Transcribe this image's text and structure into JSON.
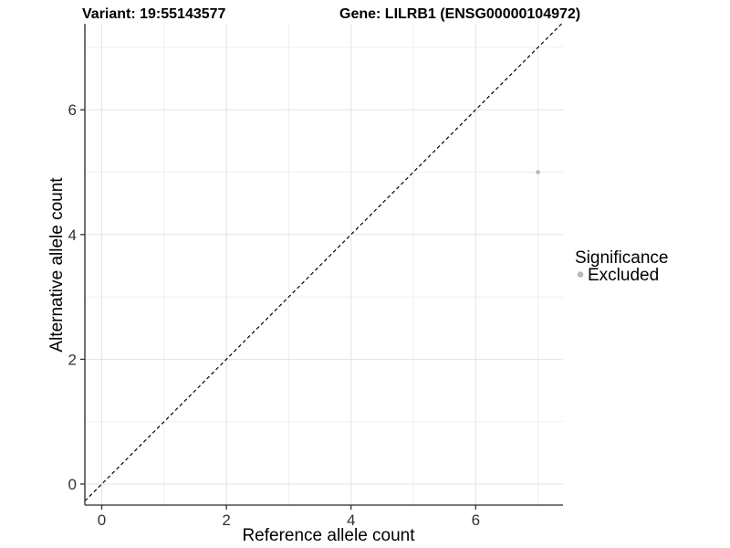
{
  "titles": {
    "variant": "Variant: 19:55143577",
    "gene": "Gene: LILRB1 (ENSG00000104972)"
  },
  "chart_data": {
    "type": "scatter",
    "titles": [
      "Variant: 19:55143577",
      "Gene: LILRB1 (ENSG00000104972)"
    ],
    "xlabel": "Reference allele count",
    "ylabel": "Alternative allele count",
    "xlim": [
      -0.35,
      7.4
    ],
    "ylim": [
      -0.35,
      7.4
    ],
    "x_major_ticks": [
      0,
      2,
      4,
      6
    ],
    "y_major_ticks": [
      0,
      2,
      4,
      6
    ],
    "x_minor_gridlines": [
      1,
      3,
      5,
      7
    ],
    "y_minor_gridlines": [
      1,
      3,
      5,
      7
    ],
    "grid": "on",
    "series": [
      {
        "name": "Excluded",
        "color": "#b8b8b8",
        "points": [
          {
            "x": 7,
            "y": 5
          }
        ]
      }
    ],
    "identity_line": {
      "slope": 1,
      "intercept": 0,
      "style": "dashed",
      "color": "#000000"
    },
    "legend_title": "Significance",
    "legend_position": "right"
  }
}
